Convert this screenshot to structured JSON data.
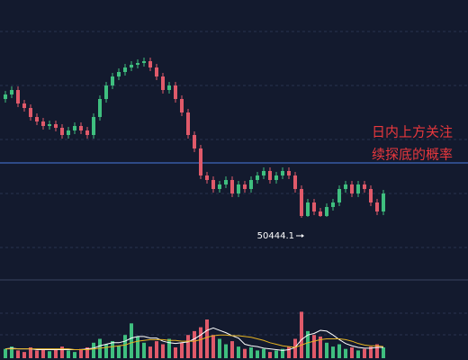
{
  "chart_data": {
    "type": "candlestick",
    "open": [
      51104,
      51129,
      51154,
      51079,
      51054,
      51004,
      50979,
      50954,
      50964,
      50944,
      50904,
      50929,
      50954,
      50929,
      50904,
      51004,
      51104,
      51179,
      51229,
      51254,
      51279,
      51294,
      51304,
      51314,
      51279,
      51229,
      51154,
      51179,
      51104,
      51029,
      50904,
      50829,
      50679,
      50654,
      50604,
      50629,
      50654,
      50579,
      50629,
      50604,
      50654,
      50679,
      50704,
      50654,
      50679,
      50704,
      50679,
      50604,
      50454,
      50529,
      50479,
      50454,
      50504,
      50529,
      50604,
      50629,
      50579,
      50629,
      50604,
      50529,
      50479
    ],
    "high": [
      51149,
      51174,
      51174,
      51099,
      51074,
      51024,
      50999,
      50984,
      50984,
      50964,
      50949,
      50974,
      50974,
      50949,
      51024,
      51124,
      51199,
      51249,
      51274,
      51299,
      51314,
      51324,
      51334,
      51334,
      51299,
      51249,
      51199,
      51199,
      51124,
      51049,
      50924,
      50849,
      50699,
      50674,
      50649,
      50674,
      50674,
      50649,
      50649,
      50674,
      50699,
      50724,
      50724,
      50699,
      50724,
      50724,
      50699,
      50624,
      50549,
      50549,
      50499,
      50524,
      50549,
      50624,
      50649,
      50649,
      50649,
      50649,
      50624,
      50549,
      50599
    ],
    "low": [
      51084,
      51109,
      51059,
      51034,
      50984,
      50959,
      50934,
      50934,
      50924,
      50884,
      50884,
      50909,
      50909,
      50884,
      50884,
      50984,
      51084,
      51159,
      51209,
      51234,
      51259,
      51274,
      51284,
      51259,
      51209,
      51134,
      51134,
      51084,
      51009,
      50884,
      50809,
      50659,
      50634,
      50584,
      50584,
      50609,
      50559,
      50559,
      50584,
      50584,
      50634,
      50659,
      50634,
      50634,
      50659,
      50659,
      50584,
      50444.1,
      50449,
      50459,
      50449,
      50449,
      50484,
      50509,
      50584,
      50559,
      50559,
      50584,
      50509,
      50459,
      50459
    ],
    "close": [
      51129,
      51154,
      51079,
      51054,
      51004,
      50979,
      50954,
      50964,
      50944,
      50904,
      50929,
      50954,
      50929,
      50904,
      51004,
      51104,
      51179,
      51229,
      51254,
      51279,
      51294,
      51304,
      51314,
      51279,
      51229,
      51154,
      51179,
      51104,
      51029,
      50904,
      50829,
      50679,
      50654,
      50604,
      50629,
      50654,
      50579,
      50629,
      50604,
      50654,
      50679,
      50704,
      50654,
      50679,
      50704,
      50679,
      50604,
      50454,
      50529,
      50479,
      50454,
      50504,
      50529,
      50604,
      50629,
      50579,
      50629,
      50604,
      50529,
      50479,
      50579
    ],
    "volume": [
      12,
      15,
      10,
      8,
      14,
      10,
      12,
      9,
      11,
      15,
      10,
      8,
      12,
      14,
      20,
      25,
      18,
      22,
      16,
      30,
      45,
      28,
      20,
      15,
      22,
      18,
      25,
      14,
      20,
      30,
      35,
      40,
      50,
      30,
      25,
      18,
      22,
      15,
      12,
      14,
      10,
      12,
      8,
      10,
      12,
      15,
      25,
      60,
      35,
      30,
      28,
      20,
      15,
      18,
      12,
      14,
      10,
      12,
      15,
      18,
      14
    ],
    "volume_lines": [
      {
        "color": "#ffffff",
        "values": [
          12,
          13,
          12,
          12,
          12,
          11,
          11,
          11,
          11,
          11,
          11,
          11,
          11,
          12,
          13,
          16,
          18,
          20,
          20,
          22,
          26,
          28,
          28,
          26,
          26,
          22,
          20,
          19,
          20,
          21,
          25,
          30,
          36,
          39,
          36,
          33,
          29,
          26,
          18,
          16,
          15,
          13,
          12,
          11,
          10,
          11,
          14,
          24,
          30,
          32,
          36,
          35,
          30,
          24,
          19,
          16,
          14,
          13,
          13,
          14,
          14
        ]
      },
      {
        "color": "#e6b422",
        "values": [
          12,
          12,
          12,
          12,
          12,
          12,
          12,
          12,
          12,
          12,
          12,
          11,
          11,
          11,
          12,
          13,
          14,
          15,
          16,
          17,
          20,
          22,
          23,
          24,
          24,
          24,
          23,
          23,
          22,
          22,
          22,
          24,
          27,
          29,
          30,
          30,
          29,
          29,
          28,
          27,
          25,
          23,
          20,
          18,
          16,
          15,
          14,
          17,
          20,
          22,
          24,
          25,
          25,
          25,
          24,
          22,
          19,
          17,
          16,
          16,
          15
        ]
      }
    ],
    "up_color": "#3fbf7f",
    "down_color": "#e05a6a",
    "ylim": [
      50104,
      51654
    ],
    "volume_lim": [
      0,
      100
    ],
    "hline": 50749,
    "hline_color": "#4a7be0",
    "annotations": [
      "日内上方关注",
      "续探底的概率"
    ]
  }
}
